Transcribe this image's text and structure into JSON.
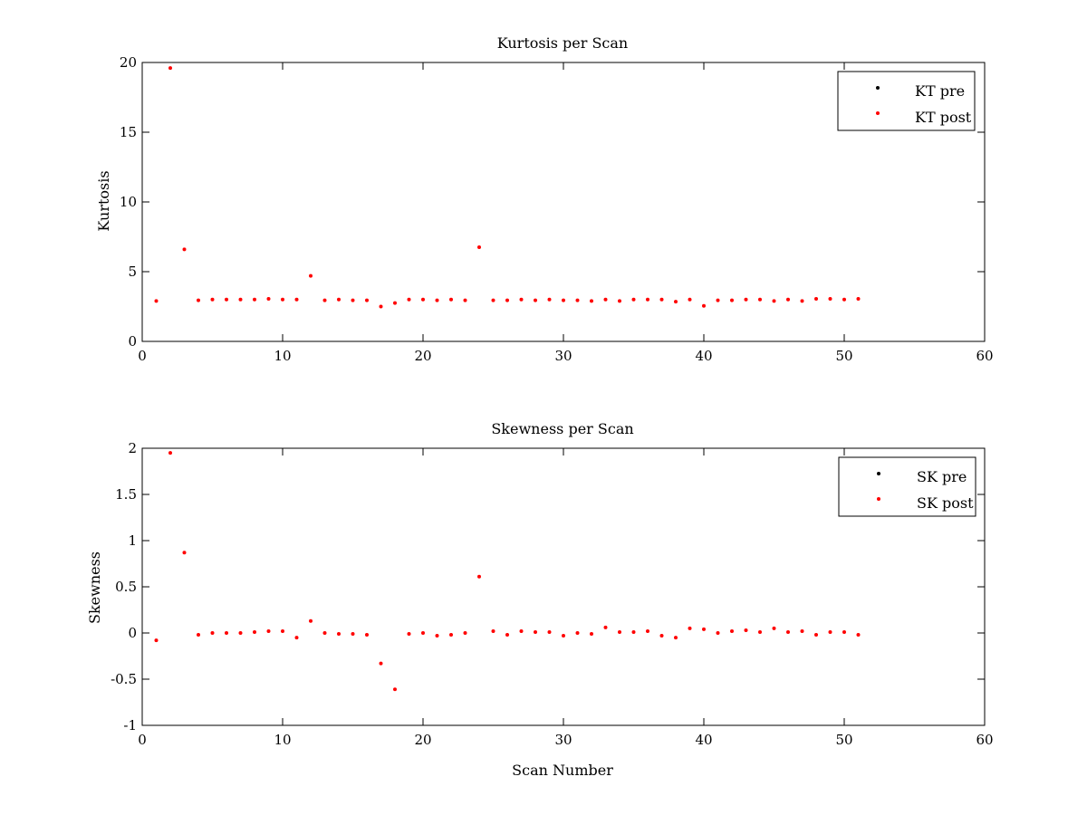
{
  "chart_data": [
    {
      "type": "scatter",
      "title": "Kurtosis per Scan",
      "xlabel": "",
      "ylabel": "Kurtosis",
      "xlim": [
        0,
        60
      ],
      "ylim": [
        0,
        20
      ],
      "xticks": [
        "0",
        "10",
        "20",
        "30",
        "40",
        "50",
        "60"
      ],
      "yticks": [
        "0",
        "5",
        "10",
        "15",
        "20"
      ],
      "xtick_values": [
        0,
        10,
        20,
        30,
        40,
        50,
        60
      ],
      "ytick_values": [
        0,
        5,
        10,
        15,
        20
      ],
      "legend_position": "top-right",
      "series": [
        {
          "name": "KT pre",
          "color": "#000000",
          "x": [],
          "y": []
        },
        {
          "name": "KT post",
          "color": "#ff0000",
          "x": [
            1,
            2,
            3,
            4,
            5,
            6,
            7,
            8,
            9,
            10,
            11,
            12,
            13,
            14,
            15,
            16,
            17,
            18,
            19,
            20,
            21,
            22,
            23,
            24,
            25,
            26,
            27,
            28,
            29,
            30,
            31,
            32,
            33,
            34,
            35,
            36,
            37,
            38,
            39,
            40,
            41,
            42,
            43,
            44,
            45,
            46,
            47,
            48,
            49,
            50,
            51
          ],
          "y": [
            2.9,
            19.6,
            6.6,
            2.95,
            3.0,
            3.0,
            3.0,
            3.0,
            3.05,
            3.0,
            3.0,
            4.7,
            2.95,
            3.0,
            2.95,
            2.95,
            2.5,
            2.75,
            3.0,
            3.0,
            2.95,
            3.0,
            2.95,
            6.75,
            2.95,
            2.95,
            3.0,
            2.95,
            3.0,
            2.95,
            2.95,
            2.9,
            3.0,
            2.9,
            3.0,
            3.0,
            3.0,
            2.85,
            3.0,
            2.55,
            2.95,
            2.95,
            3.0,
            3.0,
            2.9,
            3.0,
            2.9,
            3.05,
            3.05,
            3.0,
            3.05
          ]
        }
      ]
    },
    {
      "type": "scatter",
      "title": "Skewness per Scan",
      "xlabel": "Scan Number",
      "ylabel": "Skewness",
      "xlim": [
        0,
        60
      ],
      "ylim": [
        -1,
        2
      ],
      "xticks": [
        "0",
        "10",
        "20",
        "30",
        "40",
        "50",
        "60"
      ],
      "yticks": [
        "-1",
        "-0.5",
        "0",
        "0.5",
        "1",
        "1.5",
        "2"
      ],
      "xtick_values": [
        0,
        10,
        20,
        30,
        40,
        50,
        60
      ],
      "ytick_values": [
        -1,
        -0.5,
        0,
        0.5,
        1,
        1.5,
        2
      ],
      "legend_position": "top-right",
      "series": [
        {
          "name": "SK pre",
          "color": "#000000",
          "x": [],
          "y": []
        },
        {
          "name": "SK post",
          "color": "#ff0000",
          "x": [
            1,
            2,
            3,
            4,
            5,
            6,
            7,
            8,
            9,
            10,
            11,
            12,
            13,
            14,
            15,
            16,
            17,
            18,
            19,
            20,
            21,
            22,
            23,
            24,
            25,
            26,
            27,
            28,
            29,
            30,
            31,
            32,
            33,
            34,
            35,
            36,
            37,
            38,
            39,
            40,
            41,
            42,
            43,
            44,
            45,
            46,
            47,
            48,
            49,
            50,
            51
          ],
          "y": [
            -0.08,
            1.95,
            0.87,
            -0.02,
            0.0,
            0.0,
            0.0,
            0.01,
            0.02,
            0.02,
            -0.05,
            0.13,
            0.0,
            -0.01,
            -0.01,
            -0.02,
            -0.33,
            -0.61,
            -0.01,
            0.0,
            -0.03,
            -0.02,
            0.0,
            0.61,
            0.02,
            -0.02,
            0.02,
            0.01,
            0.01,
            -0.03,
            0.0,
            -0.01,
            0.06,
            0.01,
            0.01,
            0.02,
            -0.03,
            -0.05,
            0.05,
            0.04,
            0.0,
            0.02,
            0.03,
            0.01,
            0.05,
            0.01,
            0.02,
            -0.02,
            0.01,
            0.01,
            -0.02
          ]
        }
      ]
    }
  ]
}
